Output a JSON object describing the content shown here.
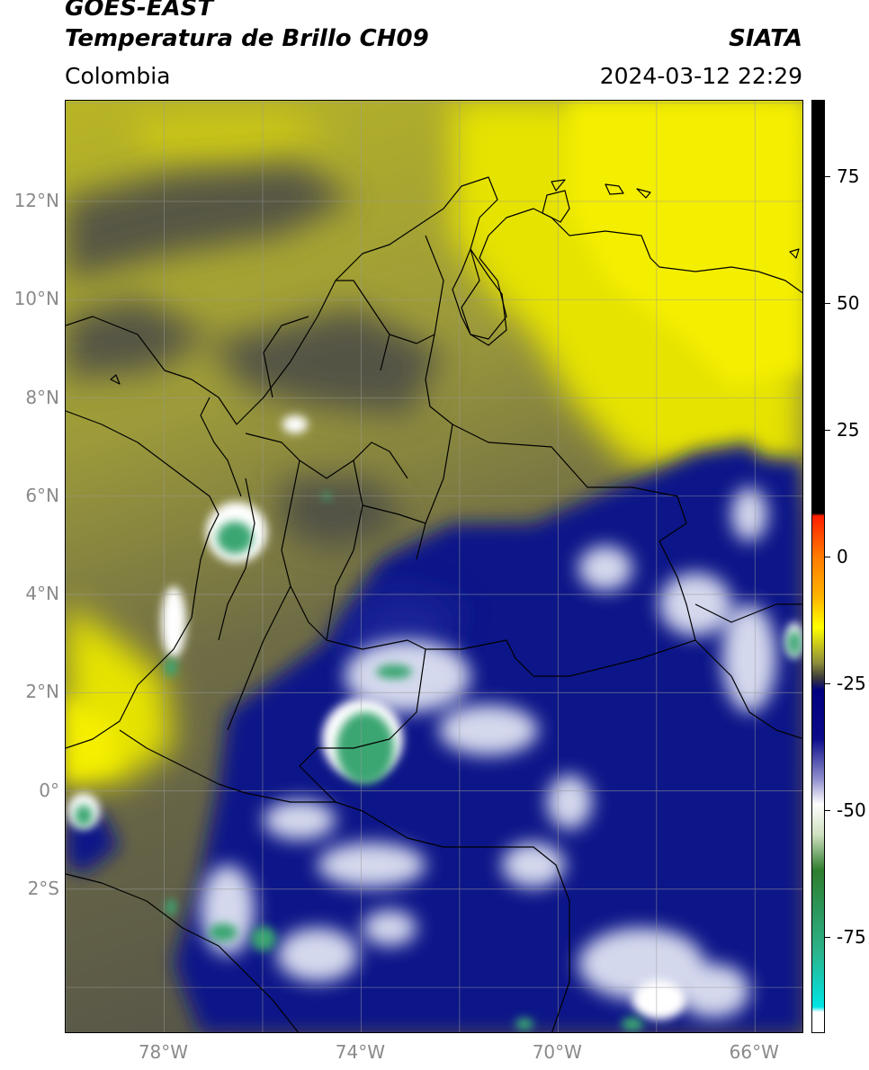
{
  "header": {
    "satellite": "GOES-EAST",
    "product": "Temperatura de Brillo CH09",
    "region": "Colombia",
    "agency": "SIATA",
    "timestamp": "2024-03-12 22:29"
  },
  "axes": {
    "lat_labels": [
      {
        "text": "12°N",
        "value": 12
      },
      {
        "text": "10°N",
        "value": 10
      },
      {
        "text": "8°N",
        "value": 8
      },
      {
        "text": "6°N",
        "value": 6
      },
      {
        "text": "4°N",
        "value": 4
      },
      {
        "text": "2°N",
        "value": 2
      },
      {
        "text": "0°",
        "value": 0
      },
      {
        "text": "2°S",
        "value": -2
      }
    ],
    "lon_labels": [
      {
        "text": "78°W",
        "value": -78
      },
      {
        "text": "74°W",
        "value": -74
      },
      {
        "text": "70°W",
        "value": -70
      },
      {
        "text": "66°W",
        "value": -66
      }
    ],
    "lat_range": [
      -4.95,
      14.05
    ],
    "lon_range": [
      -80.0,
      -65.0
    ],
    "grid": true
  },
  "colorbar": {
    "range": [
      -94,
      90
    ],
    "ticks": [
      {
        "text": "75",
        "value": 75
      },
      {
        "text": "50",
        "value": 50
      },
      {
        "text": "25",
        "value": 25
      },
      {
        "text": "0",
        "value": 0
      },
      {
        "text": "-25",
        "value": -25
      },
      {
        "text": "-50",
        "value": -50
      },
      {
        "text": "-75",
        "value": -75
      }
    ],
    "stops": [
      {
        "value": 90,
        "color": "#000000"
      },
      {
        "value": 8.5,
        "color": "#000000"
      },
      {
        "value": 8,
        "color": "#ff1e00"
      },
      {
        "value": 0,
        "color": "#ff7a00"
      },
      {
        "value": -8,
        "color": "#ffb400"
      },
      {
        "value": -14,
        "color": "#ffff00"
      },
      {
        "value": -21,
        "color": "#8e8e3a"
      },
      {
        "value": -24,
        "color": "#3a3a3a"
      },
      {
        "value": -26.5,
        "color": "#000080"
      },
      {
        "value": -36,
        "color": "#0b0b8a"
      },
      {
        "value": -44,
        "color": "#8f8fce"
      },
      {
        "value": -49,
        "color": "#ffffff"
      },
      {
        "value": -55,
        "color": "#cfe0c0"
      },
      {
        "value": -62,
        "color": "#2e7d2e"
      },
      {
        "value": -78,
        "color": "#2bb38a"
      },
      {
        "value": -89,
        "color": "#00e5e5"
      },
      {
        "value": -90,
        "color": "#ffffff"
      },
      {
        "value": -94,
        "color": "#ffffff"
      }
    ]
  },
  "colors": {
    "cloud_free_yellow": "#e3e100",
    "warm_olive": "#a5a43a",
    "mid_grey": "#5f5f4d",
    "cold_blue": "#101790",
    "very_cold_white": "#eef0f6",
    "coldest_green": "#3aa672"
  }
}
